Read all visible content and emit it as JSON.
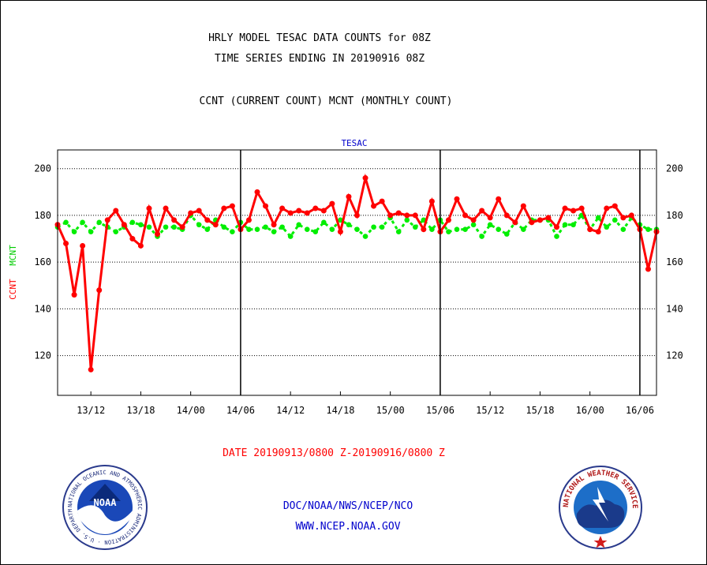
{
  "header": {
    "title_line1": "HRLY MODEL TESAC DATA COUNTS for 08Z",
    "title_line2": "TIME SERIES ENDING IN 20190916 08Z",
    "subtitle": "CCNT (CURRENT COUNT) MCNT (MONTHLY COUNT)"
  },
  "footer": {
    "date_range": "DATE 20190913/0800 Z-20190916/0800 Z",
    "org_line": "DOC/NOAA/NWS/NCEP/NCO",
    "url": "WWW.NCEP.NOAA.GOV",
    "noaa_logo_text": "NOAA",
    "noaa_ring_text": "NATIONAL OCEANIC AND ATMOSPHERIC ADMINISTRATION · U.S. DEPARTMENT OF COMMERCE ·",
    "nws_ring_text": "NATIONAL WEATHER SERVICE"
  },
  "colors": {
    "ccnt": "#ff0000",
    "mcnt": "#00ee00",
    "title": "#000000",
    "plot_label": "#0000cc",
    "date": "#ff0000",
    "footer_text": "#0000cc"
  },
  "chart_data": {
    "type": "line",
    "plot_label": "TESAC",
    "ylabel_ccnt": "CCNT",
    "ylabel_mcnt": "MCNT",
    "ylim": [
      103,
      208
    ],
    "yticks": [
      120,
      140,
      160,
      180,
      200
    ],
    "grid": true,
    "x_range_hours": [
      0,
      72
    ],
    "xticks": [
      {
        "hour": 4,
        "label": "13/12"
      },
      {
        "hour": 10,
        "label": "13/18"
      },
      {
        "hour": 16,
        "label": "14/00"
      },
      {
        "hour": 22,
        "label": "14/06"
      },
      {
        "hour": 28,
        "label": "14/12"
      },
      {
        "hour": 34,
        "label": "14/18"
      },
      {
        "hour": 40,
        "label": "15/00"
      },
      {
        "hour": 46,
        "label": "15/06"
      },
      {
        "hour": 52,
        "label": "15/12"
      },
      {
        "hour": 58,
        "label": "15/18"
      },
      {
        "hour": 64,
        "label": "16/00"
      },
      {
        "hour": 70,
        "label": "16/06"
      }
    ],
    "day_boundaries_hours": [
      22,
      46,
      70
    ],
    "series": [
      {
        "name": "CCNT",
        "values": [
          176,
          168,
          146,
          167,
          114,
          148,
          178,
          182,
          176,
          170,
          167,
          183,
          172,
          183,
          178,
          175,
          181,
          182,
          178,
          176,
          183,
          184,
          174,
          178,
          190,
          184,
          176,
          183,
          181,
          182,
          181,
          183,
          182,
          185,
          173,
          188,
          180,
          196,
          184,
          186,
          180,
          181,
          180,
          180,
          174,
          186,
          173,
          178,
          187,
          180,
          178,
          182,
          179,
          187,
          180,
          177,
          184,
          177,
          178,
          179,
          175,
          183,
          182,
          183,
          174,
          173,
          183,
          184,
          179,
          180,
          174,
          157,
          173
        ]
      },
      {
        "name": "MCNT",
        "values": [
          175,
          177,
          173,
          177,
          173,
          177,
          175,
          173,
          175,
          177,
          176,
          175,
          171,
          175,
          175,
          174,
          180,
          176,
          174,
          178,
          175,
          173,
          177,
          174,
          174,
          175,
          173,
          175,
          171,
          176,
          174,
          173,
          177,
          174,
          178,
          176,
          174,
          171,
          175,
          175,
          179,
          173,
          178,
          175,
          178,
          174,
          178,
          173,
          174,
          174,
          176,
          171,
          176,
          174,
          172,
          177,
          174,
          178,
          178,
          178,
          171,
          176,
          176,
          180,
          174,
          179,
          175,
          178,
          174,
          179,
          176,
          174,
          174
        ]
      }
    ]
  }
}
